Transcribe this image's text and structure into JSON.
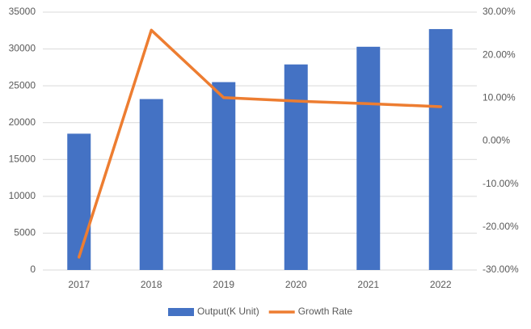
{
  "chart_data": {
    "type": "combo",
    "categories": [
      "2017",
      "2018",
      "2019",
      "2020",
      "2021",
      "2022"
    ],
    "series": [
      {
        "name": "Output(K Unit)",
        "type": "bar",
        "color": "#4472c4",
        "values": [
          18500,
          23200,
          25500,
          27900,
          30300,
          32700
        ]
      },
      {
        "name": "Growth Rate",
        "type": "line",
        "axis": "y2",
        "color": "#ed7d31",
        "values": [
          -27.0,
          25.8,
          10.1,
          9.3,
          8.7,
          8.0
        ]
      }
    ],
    "ylim": [
      0,
      35000
    ],
    "yticks": [
      0,
      5000,
      10000,
      15000,
      20000,
      25000,
      30000,
      35000
    ],
    "y2lim": [
      -30,
      30
    ],
    "y2ticks": [
      {
        "value": -30,
        "label": "-30.00%"
      },
      {
        "value": -20,
        "label": "-20.00%"
      },
      {
        "value": -10,
        "label": "-10.00%"
      },
      {
        "value": 0,
        "label": "0.00%"
      },
      {
        "value": 10,
        "label": "10.00%"
      },
      {
        "value": 20,
        "label": "20.00%"
      },
      {
        "value": 30,
        "label": "30.00%"
      }
    ],
    "grid": true,
    "legend": "bottom"
  }
}
